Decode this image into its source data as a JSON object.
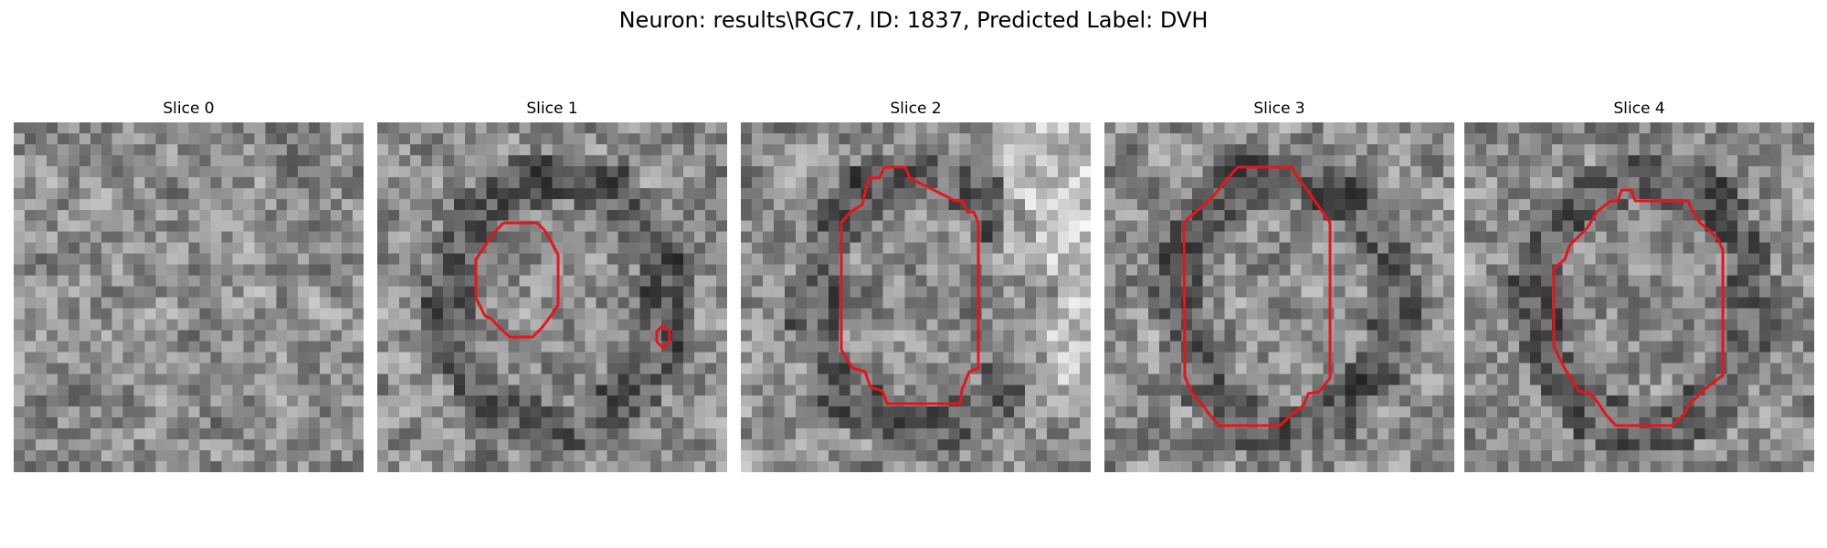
{
  "figure": {
    "title": "Neuron: results\\RGC7, ID: 1837, Predicted Label: DVH"
  },
  "colors": {
    "contour": "#e8141b",
    "background": "#ffffff",
    "colormap": "grayscale"
  },
  "panels": [
    {
      "title": "Slice 0",
      "image": {
        "grid": 32,
        "seed": 11,
        "dark_region": false,
        "light_band": false
      },
      "contours": []
    },
    {
      "title": "Slice 1",
      "image": {
        "grid": 32,
        "seed": 23,
        "dark_region": true,
        "light_band": false
      },
      "contours": [
        "main",
        "small-blob"
      ]
    },
    {
      "title": "Slice 2",
      "image": {
        "grid": 32,
        "seed": 37,
        "dark_region": true,
        "light_band": true
      },
      "contours": [
        "main"
      ]
    },
    {
      "title": "Slice 3",
      "image": {
        "grid": 32,
        "seed": 41,
        "dark_region": true,
        "light_band": false
      },
      "contours": [
        "main"
      ]
    },
    {
      "title": "Slice 4",
      "image": {
        "grid": 32,
        "seed": 53,
        "dark_region": true,
        "light_band": false
      },
      "contours": [
        "main"
      ]
    }
  ]
}
